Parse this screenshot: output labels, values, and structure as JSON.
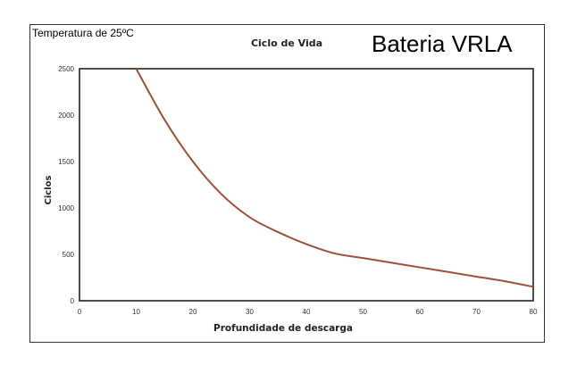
{
  "annotations": {
    "temperature": "Temperatura de 25ºC",
    "battery_title": "Bateria VRLA"
  },
  "chart_data": {
    "type": "line",
    "title": "Ciclo de Vida",
    "xlabel": "Profundidade de descarga",
    "ylabel": "Ciclos",
    "xlim": [
      0,
      80
    ],
    "ylim": [
      0,
      2500
    ],
    "x_ticks": [
      0,
      10,
      20,
      30,
      40,
      50,
      60,
      70,
      80
    ],
    "y_ticks": [
      0,
      500,
      1000,
      1500,
      2000,
      2500
    ],
    "grid": true,
    "series": [
      {
        "color": "#a0503a",
        "x": [
          10,
          15,
          20,
          25,
          30,
          35,
          40,
          45,
          50,
          55,
          60,
          65,
          70,
          75,
          80
        ],
        "y": [
          2500,
          1950,
          1500,
          1150,
          900,
          740,
          610,
          510,
          460,
          410,
          360,
          310,
          260,
          210,
          150
        ]
      }
    ]
  }
}
